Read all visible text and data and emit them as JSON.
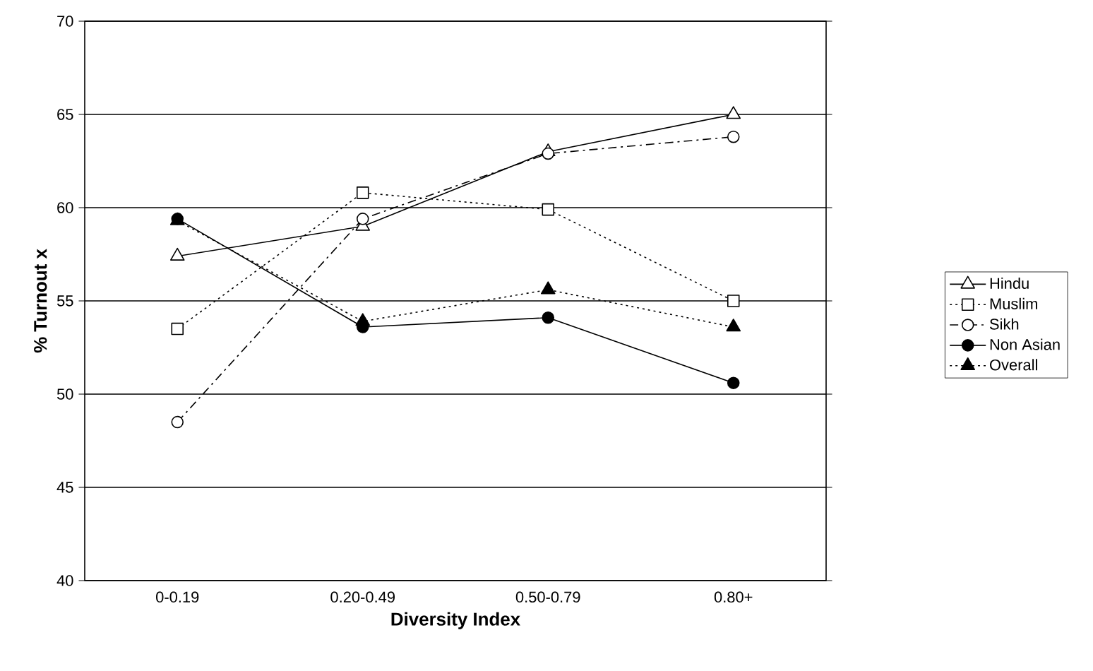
{
  "chart_data": {
    "type": "line",
    "xlabel": "Diversity Index",
    "ylabel": "% Turnout x",
    "categories": [
      "0-0.19",
      "0.20-0.49",
      "0.50-0.79",
      "0.80+"
    ],
    "ylim": [
      40,
      70
    ],
    "yticks": [
      40,
      45,
      50,
      55,
      60,
      65,
      70
    ],
    "grid": "y",
    "legend": "right",
    "series": [
      {
        "name": "Hindu",
        "color": "#000000",
        "marker": "triangle",
        "line_style": "solid",
        "values": [
          57.4,
          59.0,
          63.0,
          65.0
        ]
      },
      {
        "name": "Muslim",
        "color": "#000000",
        "marker": "square",
        "line_style": "dotted",
        "values": [
          53.5,
          60.8,
          59.9,
          55.0
        ]
      },
      {
        "name": "Sikh",
        "color": "#000000",
        "marker": "circle",
        "line_style": "dashed",
        "values": [
          48.5,
          59.4,
          62.9,
          63.8
        ]
      },
      {
        "name": "Non Asian",
        "color": "#000000",
        "marker": "circle",
        "line_style": "solid",
        "values": [
          59.4,
          53.6,
          54.1,
          50.6
        ]
      },
      {
        "name": "Overall",
        "color": "#000000",
        "marker": "triangle",
        "line_style": "dotted",
        "values": [
          59.3,
          53.9,
          55.6,
          53.6
        ]
      }
    ]
  }
}
